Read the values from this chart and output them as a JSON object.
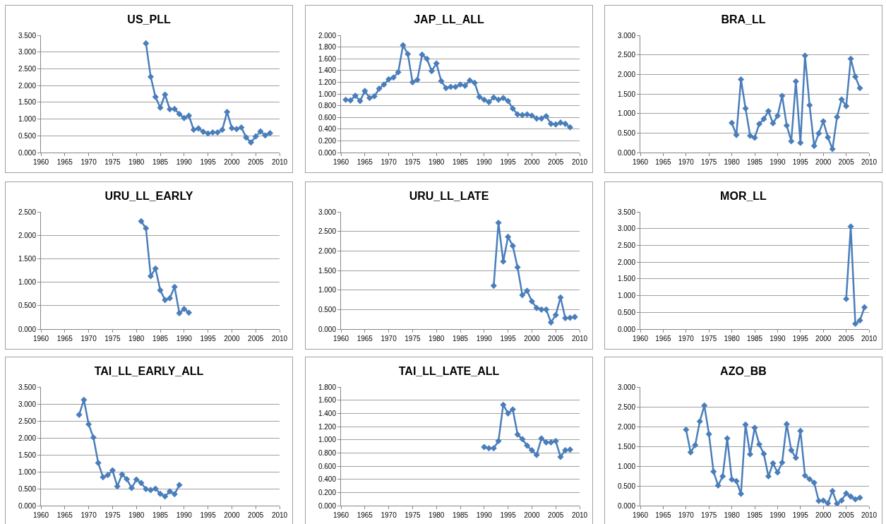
{
  "chart_data": [
    {
      "type": "line",
      "title": "US_PLL",
      "color": "#4a7ebb",
      "marker": "diamond",
      "line_style": "solid",
      "grid": "y",
      "xlim": [
        1960,
        2010
      ],
      "xticks": [
        1960,
        1965,
        1970,
        1975,
        1980,
        1985,
        1990,
        1995,
        2000,
        2005,
        2010
      ],
      "ylim": [
        0,
        3.5
      ],
      "yticks": [
        {
          "value": 0,
          "label": "0.000"
        },
        {
          "value": 0.5,
          "label": "0.500"
        },
        {
          "value": 1,
          "label": "1.000"
        },
        {
          "value": 1.5,
          "label": "1.500"
        },
        {
          "value": 2,
          "label": "2.000"
        },
        {
          "value": 2.5,
          "label": "2.500"
        },
        {
          "value": 3,
          "label": "3.000"
        },
        {
          "value": 3.5,
          "label": "3.500"
        }
      ],
      "x": [
        1982,
        1983,
        1984,
        1985,
        1986,
        1987,
        1988,
        1989,
        1990,
        1991,
        1992,
        1993,
        1994,
        1995,
        1996,
        1997,
        1998,
        1999,
        2000,
        2001,
        2002,
        2003,
        2004,
        2005,
        2006,
        2007,
        2008
      ],
      "values": [
        3.26,
        2.26,
        1.66,
        1.34,
        1.73,
        1.29,
        1.3,
        1.15,
        1.03,
        1.1,
        0.68,
        0.72,
        0.62,
        0.57,
        0.6,
        0.6,
        0.68,
        1.21,
        0.73,
        0.7,
        0.75,
        0.45,
        0.3,
        0.48,
        0.63,
        0.51,
        0.58
      ]
    },
    {
      "type": "line",
      "title": "JAP_LL_ALL",
      "color": "#4a7ebb",
      "marker": "diamond",
      "line_style": "solid",
      "grid": "y",
      "xlim": [
        1960,
        2010
      ],
      "xticks": [
        1960,
        1965,
        1970,
        1975,
        1980,
        1985,
        1990,
        1995,
        2000,
        2005,
        2010
      ],
      "ylim": [
        0,
        2
      ],
      "yticks": [
        {
          "value": 0,
          "label": "0.000"
        },
        {
          "value": 0.2,
          "label": "0.200"
        },
        {
          "value": 0.4,
          "label": "0.400"
        },
        {
          "value": 0.6,
          "label": "0.600"
        },
        {
          "value": 0.8,
          "label": "0.800"
        },
        {
          "value": 1,
          "label": "1.000"
        },
        {
          "value": 1.2,
          "label": "1.200"
        },
        {
          "value": 1.4,
          "label": "1.400"
        },
        {
          "value": 1.6,
          "label": "1.600"
        },
        {
          "value": 1.8,
          "label": "1.800"
        },
        {
          "value": 2,
          "label": "2.000"
        }
      ],
      "x": [
        1961,
        1962,
        1963,
        1964,
        1965,
        1966,
        1967,
        1968,
        1969,
        1970,
        1971,
        1972,
        1973,
        1974,
        1975,
        1976,
        1977,
        1978,
        1979,
        1980,
        1981,
        1982,
        1983,
        1984,
        1985,
        1986,
        1987,
        1988,
        1989,
        1990,
        1991,
        1992,
        1993,
        1994,
        1995,
        1996,
        1997,
        1998,
        1999,
        2000,
        2001,
        2002,
        2003,
        2004,
        2005,
        2006,
        2007,
        2008
      ],
      "values": [
        0.9,
        0.89,
        0.97,
        0.88,
        1.05,
        0.93,
        0.96,
        1.09,
        1.16,
        1.25,
        1.28,
        1.37,
        1.83,
        1.68,
        1.2,
        1.24,
        1.67,
        1.6,
        1.39,
        1.52,
        1.22,
        1.1,
        1.12,
        1.12,
        1.16,
        1.14,
        1.23,
        1.19,
        0.95,
        0.9,
        0.86,
        0.94,
        0.9,
        0.93,
        0.88,
        0.75,
        0.65,
        0.64,
        0.65,
        0.63,
        0.58,
        0.58,
        0.62,
        0.49,
        0.48,
        0.51,
        0.49,
        0.43
      ]
    },
    {
      "type": "line",
      "title": "BRA_LL",
      "color": "#4a7ebb",
      "marker": "diamond",
      "line_style": "solid",
      "grid": "y",
      "xlim": [
        1960,
        2010
      ],
      "xticks": [
        1960,
        1965,
        1970,
        1975,
        1980,
        1985,
        1990,
        1995,
        2000,
        2005,
        2010
      ],
      "ylim": [
        0,
        3
      ],
      "yticks": [
        {
          "value": 0,
          "label": "0.000"
        },
        {
          "value": 0.5,
          "label": "0.500"
        },
        {
          "value": 1,
          "label": "1.000"
        },
        {
          "value": 1.5,
          "label": "1.500"
        },
        {
          "value": 2,
          "label": "2.000"
        },
        {
          "value": 2.5,
          "label": "2.500"
        },
        {
          "value": 3,
          "label": "3.000"
        }
      ],
      "x": [
        1980,
        1981,
        1982,
        1983,
        1984,
        1985,
        1986,
        1987,
        1988,
        1989,
        1990,
        1991,
        1992,
        1993,
        1994,
        1995,
        1996,
        1997,
        1998,
        1999,
        2000,
        2001,
        2002,
        2003,
        2004,
        2005,
        2006,
        2007,
        2008
      ],
      "values": [
        0.76,
        0.45,
        1.87,
        1.13,
        0.43,
        0.38,
        0.73,
        0.86,
        1.06,
        0.75,
        0.94,
        1.45,
        0.69,
        0.29,
        1.82,
        0.25,
        2.48,
        1.21,
        0.17,
        0.49,
        0.8,
        0.39,
        0.09,
        0.91,
        1.36,
        1.19,
        2.4,
        1.94,
        1.65
      ]
    },
    {
      "type": "line",
      "title": "URU_LL_EARLY",
      "color": "#4a7ebb",
      "marker": "diamond",
      "line_style": "solid",
      "grid": "y",
      "xlim": [
        1960,
        2010
      ],
      "xticks": [
        1960,
        1965,
        1970,
        1975,
        1980,
        1985,
        1990,
        1995,
        2000,
        2005,
        2010
      ],
      "ylim": [
        0,
        2.5
      ],
      "yticks": [
        {
          "value": 0,
          "label": "0.000"
        },
        {
          "value": 0.5,
          "label": "0.500"
        },
        {
          "value": 1,
          "label": "1.000"
        },
        {
          "value": 1.5,
          "label": "1.500"
        },
        {
          "value": 2,
          "label": "2.000"
        },
        {
          "value": 2.5,
          "label": "2.500"
        }
      ],
      "x": [
        1981,
        1982,
        1983,
        1984,
        1985,
        1986,
        1987,
        1988,
        1989,
        1990,
        1991
      ],
      "values": [
        2.3,
        2.15,
        1.13,
        1.29,
        0.83,
        0.62,
        0.66,
        0.9,
        0.34,
        0.43,
        0.35
      ]
    },
    {
      "type": "line",
      "title": "URU_LL_LATE",
      "color": "#4a7ebb",
      "marker": "diamond",
      "line_style": "solid",
      "grid": "y",
      "xlim": [
        1960,
        2010
      ],
      "xticks": [
        1960,
        1965,
        1970,
        1975,
        1980,
        1985,
        1990,
        1995,
        2000,
        2005,
        2010
      ],
      "ylim": [
        0,
        3
      ],
      "yticks": [
        {
          "value": 0,
          "label": "0.000"
        },
        {
          "value": 0.5,
          "label": "0.500"
        },
        {
          "value": 1,
          "label": "1.000"
        },
        {
          "value": 1.5,
          "label": "1.500"
        },
        {
          "value": 2,
          "label": "2.000"
        },
        {
          "value": 2.5,
          "label": "2.500"
        },
        {
          "value": 3,
          "label": "3.000"
        }
      ],
      "x": [
        1992,
        1993,
        1994,
        1995,
        1996,
        1997,
        1998,
        1999,
        2000,
        2001,
        2002,
        2003,
        2004,
        2005,
        2006,
        2007,
        2008,
        2009
      ],
      "values": [
        1.11,
        2.72,
        1.73,
        2.36,
        2.13,
        1.58,
        0.87,
        0.98,
        0.71,
        0.54,
        0.5,
        0.5,
        0.17,
        0.36,
        0.81,
        0.28,
        0.29,
        0.31
      ]
    },
    {
      "type": "line",
      "title": "MOR_LL",
      "color": "#4a7ebb",
      "marker": "diamond",
      "line_style": "solid",
      "grid": "y",
      "xlim": [
        1960,
        2010
      ],
      "xticks": [
        1960,
        1965,
        1970,
        1975,
        1980,
        1985,
        1990,
        1995,
        2000,
        2005,
        2010
      ],
      "ylim": [
        0,
        3.5
      ],
      "yticks": [
        {
          "value": 0,
          "label": "0.000"
        },
        {
          "value": 0.5,
          "label": "0.500"
        },
        {
          "value": 1,
          "label": "1.000"
        },
        {
          "value": 1.5,
          "label": "1.500"
        },
        {
          "value": 2,
          "label": "2.000"
        },
        {
          "value": 2.5,
          "label": "2.500"
        },
        {
          "value": 3,
          "label": "3.000"
        },
        {
          "value": 3.5,
          "label": "3.500"
        }
      ],
      "x": [
        2005,
        2006,
        2007,
        2008,
        2009
      ],
      "values": [
        0.9,
        3.06,
        0.16,
        0.26,
        0.65
      ]
    },
    {
      "type": "line",
      "title": "TAI_LL_EARLY_ALL",
      "color": "#4a7ebb",
      "marker": "diamond",
      "line_style": "solid",
      "grid": "y",
      "xlim": [
        1960,
        2010
      ],
      "xticks": [
        1960,
        1965,
        1970,
        1975,
        1980,
        1985,
        1990,
        1995,
        2000,
        2005,
        2010
      ],
      "ylim": [
        0,
        3.5
      ],
      "yticks": [
        {
          "value": 0,
          "label": "0.000"
        },
        {
          "value": 0.5,
          "label": "0.500"
        },
        {
          "value": 1,
          "label": "1.000"
        },
        {
          "value": 1.5,
          "label": "1.500"
        },
        {
          "value": 2,
          "label": "2.000"
        },
        {
          "value": 2.5,
          "label": "2.500"
        },
        {
          "value": 3,
          "label": "3.000"
        },
        {
          "value": 3.5,
          "label": "3.500"
        }
      ],
      "x": [
        1968,
        1969,
        1970,
        1971,
        1972,
        1973,
        1974,
        1975,
        1976,
        1977,
        1978,
        1979,
        1980,
        1981,
        1982,
        1983,
        1984,
        1985,
        1986,
        1987,
        1988,
        1989
      ],
      "values": [
        2.68,
        3.12,
        2.4,
        2.01,
        1.26,
        0.84,
        0.9,
        1.04,
        0.57,
        0.92,
        0.78,
        0.52,
        0.77,
        0.67,
        0.49,
        0.46,
        0.5,
        0.35,
        0.27,
        0.42,
        0.34,
        0.61
      ]
    },
    {
      "type": "line",
      "title": "TAI_LL_LATE_ALL",
      "color": "#4a7ebb",
      "marker": "diamond",
      "line_style": "solid",
      "grid": "y",
      "xlim": [
        1960,
        2010
      ],
      "xticks": [
        1960,
        1965,
        1970,
        1975,
        1980,
        1985,
        1990,
        1995,
        2000,
        2005,
        2010
      ],
      "ylim": [
        0,
        1.8
      ],
      "yticks": [
        {
          "value": 0,
          "label": "0.000"
        },
        {
          "value": 0.2,
          "label": "0.200"
        },
        {
          "value": 0.4,
          "label": "0.400"
        },
        {
          "value": 0.6,
          "label": "0.600"
        },
        {
          "value": 0.8,
          "label": "0.800"
        },
        {
          "value": 1,
          "label": "1.000"
        },
        {
          "value": 1.2,
          "label": "1.200"
        },
        {
          "value": 1.4,
          "label": "1.400"
        },
        {
          "value": 1.6,
          "label": "1.600"
        },
        {
          "value": 1.8,
          "label": "1.800"
        }
      ],
      "x": [
        1990,
        1991,
        1992,
        1993,
        1994,
        1995,
        1996,
        1997,
        1998,
        1999,
        2000,
        2001,
        2002,
        2003,
        2004,
        2005,
        2006,
        2007,
        2008
      ],
      "values": [
        0.89,
        0.87,
        0.87,
        0.98,
        1.53,
        1.4,
        1.46,
        1.08,
        1.01,
        0.91,
        0.84,
        0.77,
        1.02,
        0.96,
        0.96,
        0.98,
        0.74,
        0.84,
        0.85
      ]
    },
    {
      "type": "line",
      "title": "AZO_BB",
      "color": "#4a7ebb",
      "marker": "diamond",
      "line_style": "solid",
      "grid": "y",
      "xlim": [
        1960,
        2010
      ],
      "xticks": [
        1960,
        1965,
        1970,
        1975,
        1980,
        1985,
        1990,
        1995,
        2000,
        2005,
        2010
      ],
      "ylim": [
        0,
        3
      ],
      "yticks": [
        {
          "value": 0,
          "label": "0.000"
        },
        {
          "value": 0.5,
          "label": "0.500"
        },
        {
          "value": 1,
          "label": "1.000"
        },
        {
          "value": 1.5,
          "label": "1.500"
        },
        {
          "value": 2,
          "label": "2.000"
        },
        {
          "value": 2.5,
          "label": "2.500"
        },
        {
          "value": 3,
          "label": "3.000"
        }
      ],
      "x": [
        1970,
        1971,
        1972,
        1973,
        1974,
        1975,
        1976,
        1977,
        1978,
        1979,
        1980,
        1981,
        1982,
        1983,
        1984,
        1985,
        1986,
        1987,
        1988,
        1989,
        1990,
        1991,
        1992,
        1993,
        1994,
        1995,
        1996,
        1997,
        1998,
        1999,
        2000,
        2001,
        2002,
        2003,
        2004,
        2005,
        2006,
        2007,
        2008
      ],
      "values": [
        1.92,
        1.35,
        1.53,
        2.13,
        2.53,
        1.81,
        0.86,
        0.51,
        0.74,
        1.7,
        0.66,
        0.62,
        0.3,
        2.05,
        1.3,
        1.97,
        1.55,
        1.31,
        0.74,
        1.07,
        0.84,
        1.09,
        2.06,
        1.4,
        1.21,
        1.89,
        0.76,
        0.67,
        0.58,
        0.12,
        0.13,
        0.06,
        0.37,
        0.05,
        0.13,
        0.31,
        0.23,
        0.16,
        0.2
      ]
    }
  ]
}
